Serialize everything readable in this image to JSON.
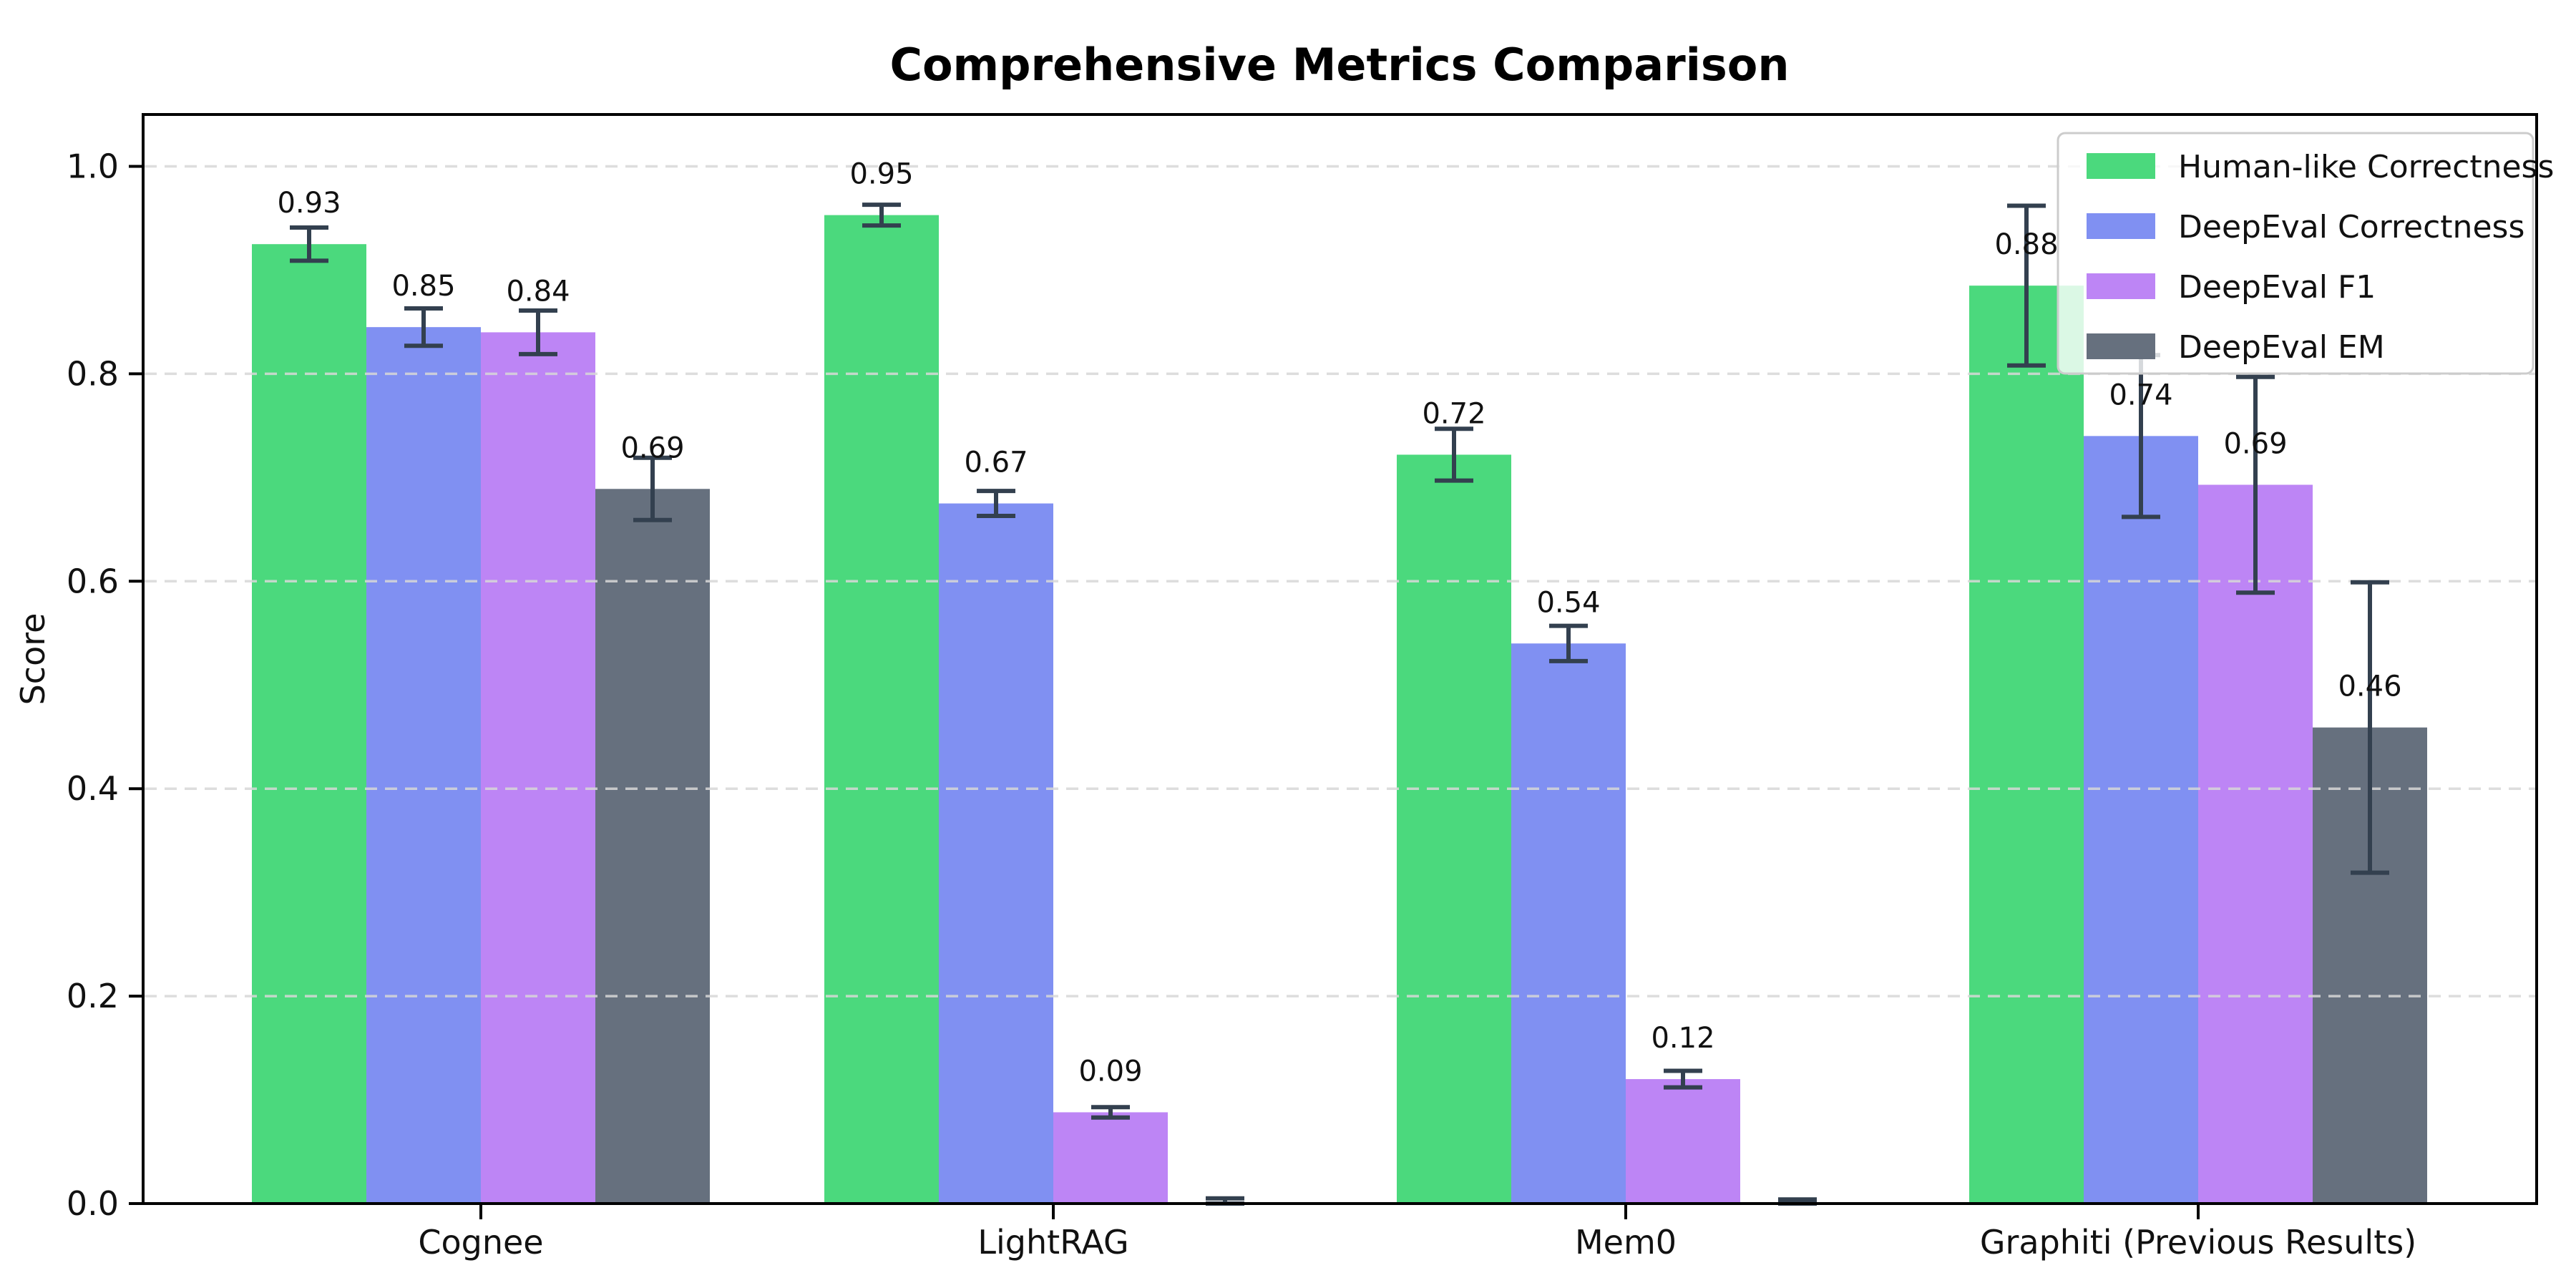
{
  "page": {
    "background": "#ffffff"
  },
  "chart_data": {
    "type": "bar",
    "title": "Comprehensive Metrics Comparison",
    "xlabel": "",
    "ylabel": "Score",
    "categories": [
      "Cognee",
      "LightRAG",
      "Mem0",
      "Graphiti (Previous Results)"
    ],
    "series": [
      {
        "name": "Human-like Correctness",
        "color": "#4bd97d",
        "values": [
          0.925,
          0.953,
          0.722,
          0.885
        ],
        "labels": [
          "0.93",
          "0.95",
          "0.72",
          "0.88"
        ],
        "errors": [
          0.016,
          0.01,
          0.025,
          0.077
        ]
      },
      {
        "name": "DeepEval Correctness",
        "color": "#8090f2",
        "values": [
          0.845,
          0.675,
          0.54,
          0.74
        ],
        "labels": [
          "0.85",
          "0.67",
          "0.54",
          "0.74"
        ],
        "errors": [
          0.018,
          0.012,
          0.017,
          0.078
        ]
      },
      {
        "name": "DeepEval F1",
        "color": "#bd85f5",
        "values": [
          0.84,
          0.088,
          0.12,
          0.693
        ],
        "labels": [
          "0.84",
          "0.09",
          "0.12",
          "0.69"
        ],
        "errors": [
          0.021,
          0.005,
          0.008,
          0.104
        ]
      },
      {
        "name": "DeepEval EM",
        "color": "#66707e",
        "values": [
          0.689,
          0.0,
          0.0,
          0.459
        ],
        "labels": [
          "0.69",
          "",
          "",
          "0.46"
        ],
        "errors": [
          0.03,
          0.005,
          0.004,
          0.14
        ]
      }
    ],
    "yticks": [
      "0.0",
      "0.2",
      "0.4",
      "0.6",
      "0.8",
      "1.0"
    ],
    "ylim": [
      0,
      1.05
    ],
    "grid": "dashed-horizontal",
    "legend_position": "upper-right",
    "error_bar_color": "#33404f",
    "grid_color": "#d8d8d8",
    "axis_color": "#000000",
    "legend_border_color": "#cccccc"
  }
}
